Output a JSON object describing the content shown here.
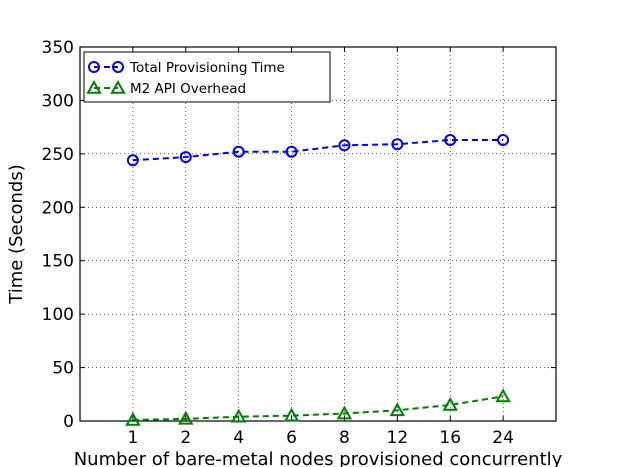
{
  "chart_data": {
    "type": "line",
    "categories": [
      "1",
      "2",
      "4",
      "6",
      "8",
      "12",
      "16",
      "24"
    ],
    "series": [
      {
        "name": "Total Provisioning Time",
        "values": [
          244,
          247,
          252,
          252,
          258,
          259,
          263,
          263
        ],
        "color": "#0000ff",
        "marker": "circle"
      },
      {
        "name": "M2 API Overhead",
        "values": [
          1,
          2,
          4,
          5,
          7,
          10,
          15,
          23
        ],
        "color": "#008000",
        "marker": "triangle"
      }
    ],
    "xlabel": "Number of bare-metal nodes provisioned concurrently",
    "ylabel": "Time (Seconds)",
    "ylim": [
      0,
      350
    ],
    "yticks": [
      0,
      50,
      100,
      150,
      200,
      250,
      300,
      350
    ],
    "grid": true,
    "line_style": "dashed",
    "legend_position": "top-left"
  }
}
